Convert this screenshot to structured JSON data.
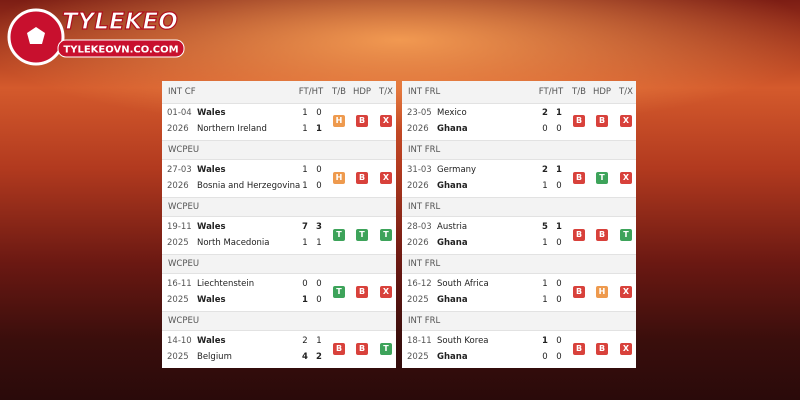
{
  "logo": {
    "title": "TYLEKEO",
    "url": "TYLEKEOVN.CO.COM"
  },
  "badge_colors": {
    "H": "#ee9a4e",
    "B": "#d8413b",
    "T": "#3da35a",
    "X": "#d8413b"
  },
  "tables": [
    {
      "columns": [
        "FT/HT",
        "T/B",
        "HDP",
        "T/X"
      ],
      "matches": [
        {
          "league": "INT CF",
          "date": "01-04",
          "year": "2026",
          "home": {
            "name": "Wales",
            "bold": true,
            "ft": 1,
            "ht": 0
          },
          "away": {
            "name": "Northern Ireland",
            "bold": false,
            "ft": 1,
            "ht": 1
          },
          "badges": [
            "H",
            "B",
            "X"
          ]
        },
        {
          "league": "WCPEU",
          "date": "27-03",
          "year": "2026",
          "home": {
            "name": "Wales",
            "bold": true,
            "ft": 1,
            "ht": 0
          },
          "away": {
            "name": "Bosnia and Herzegovina",
            "bold": false,
            "ft": 1,
            "ht": 0
          },
          "badges": [
            "H",
            "B",
            "X"
          ]
        },
        {
          "league": "WCPEU",
          "date": "19-11",
          "year": "2025",
          "home": {
            "name": "Wales",
            "bold": true,
            "ft": 7,
            "ht": 3
          },
          "away": {
            "name": "North Macedonia",
            "bold": false,
            "ft": 1,
            "ht": 1
          },
          "badges": [
            "T",
            "T",
            "T"
          ]
        },
        {
          "league": "WCPEU",
          "date": "16-11",
          "year": "2025",
          "home": {
            "name": "Liechtenstein",
            "bold": false,
            "ft": 0,
            "ht": 0
          },
          "away": {
            "name": "Wales",
            "bold": true,
            "ft": 1,
            "ht": 0
          },
          "badges": [
            "T",
            "B",
            "X"
          ]
        },
        {
          "league": "WCPEU",
          "date": "14-10",
          "year": "2025",
          "home": {
            "name": "Wales",
            "bold": true,
            "ft": 2,
            "ht": 1
          },
          "away": {
            "name": "Belgium",
            "bold": false,
            "ft": 4,
            "ht": 2
          },
          "badges": [
            "B",
            "B",
            "T"
          ]
        }
      ]
    },
    {
      "columns": [
        "FT/HT",
        "T/B",
        "HDP",
        "T/X"
      ],
      "matches": [
        {
          "league": "INT FRL",
          "date": "23-05",
          "year": "2026",
          "home": {
            "name": "Mexico",
            "bold": false,
            "ft": 2,
            "ht": 1
          },
          "away": {
            "name": "Ghana",
            "bold": true,
            "ft": 0,
            "ht": 0
          },
          "badges": [
            "B",
            "B",
            "X"
          ]
        },
        {
          "league": "INT FRL",
          "date": "31-03",
          "year": "2026",
          "home": {
            "name": "Germany",
            "bold": false,
            "ft": 2,
            "ht": 1
          },
          "away": {
            "name": "Ghana",
            "bold": true,
            "ft": 1,
            "ht": 0
          },
          "badges": [
            "B",
            "T",
            "X"
          ]
        },
        {
          "league": "INT FRL",
          "date": "28-03",
          "year": "2026",
          "home": {
            "name": "Austria",
            "bold": false,
            "ft": 5,
            "ht": 1
          },
          "away": {
            "name": "Ghana",
            "bold": true,
            "ft": 1,
            "ht": 0
          },
          "badges": [
            "B",
            "B",
            "T"
          ]
        },
        {
          "league": "INT FRL",
          "date": "16-12",
          "year": "2025",
          "home": {
            "name": "South Africa",
            "bold": false,
            "ft": 1,
            "ht": 0
          },
          "away": {
            "name": "Ghana",
            "bold": true,
            "ft": 1,
            "ht": 0
          },
          "badges": [
            "B",
            "H",
            "X"
          ]
        },
        {
          "league": "INT FRL",
          "date": "18-11",
          "year": "2025",
          "home": {
            "name": "South Korea",
            "bold": false,
            "ft": 1,
            "ht": 0
          },
          "away": {
            "name": "Ghana",
            "bold": true,
            "ft": 0,
            "ht": 0
          },
          "badges": [
            "B",
            "B",
            "X"
          ]
        }
      ]
    }
  ]
}
